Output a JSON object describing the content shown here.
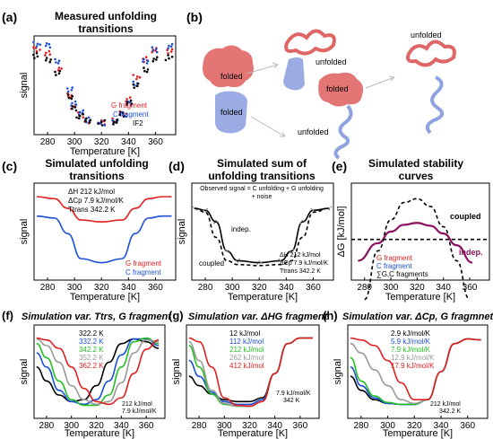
{
  "panels": {
    "a": {
      "letter": "(a)",
      "title_lines": [
        "Measured unfolding",
        "transitions"
      ],
      "xlabel": "Temperature [K]",
      "ylabel": "signal",
      "legend": [
        {
          "text": "G fragment",
          "color": "#e02020"
        },
        {
          "text": "C fragment",
          "color": "#1a4fd6"
        },
        {
          "text": "IF2",
          "color": "#000000"
        }
      ]
    },
    "b": {
      "letter": "(b)",
      "labels": {
        "folded_top": "folded",
        "folded_bottom": "folded",
        "unfolded_top": "unfolded",
        "folded_mid": "folded",
        "unfolded_bottom": "unfolded",
        "unfolded_right": "unfolded"
      }
    },
    "c": {
      "letter": "(c)",
      "title_lines": [
        "Simulated unfolding",
        "transitions"
      ],
      "xlabel": "Temperature [K]",
      "ylabel": "signal",
      "params": [
        "ΔH   212 kJ/mol",
        "ΔCp  7.9 kJ/mol/K",
        "Ttrans 342.2 K"
      ],
      "legend": [
        {
          "text": "G fragment",
          "color": "#e02020"
        },
        {
          "text": "C fragment",
          "color": "#1a4fd6"
        }
      ]
    },
    "d": {
      "letter": "(d)",
      "title_lines": [
        "Simulated sum of",
        "unfolding transitions"
      ],
      "xlabel": "Temperature [K]",
      "ylabel": "signal",
      "box_lines": [
        "Observed signal = C unfolding + G unfolding",
        "+ noise"
      ],
      "label_indep": "indep.",
      "label_coupled": "coupled",
      "params": [
        "ΔH    212 kJ/mol",
        "ΔCp  7.9 kJ/mol/K",
        "Ttrans 342.2 K"
      ]
    },
    "e": {
      "letter": "(e)",
      "title_lines": [
        "Simulated stability",
        "curves"
      ],
      "xlabel": "Temperature [K]",
      "ylabel": "ΔG [kJ/mol]",
      "label_coupled": "coupled",
      "label_indep": "indep.",
      "legend": [
        {
          "text": "G fragment",
          "color": "#e02020"
        },
        {
          "text": "C fragment",
          "color": "#1a4fd6"
        },
        {
          "text": "∑G,C fragments",
          "color": "#000000"
        }
      ]
    },
    "f": {
      "letter": "(f)",
      "title": "Simulation var. Ttrs, G fragment",
      "xlabel": "Temperature [K]",
      "ylabel": "signal",
      "legend": [
        {
          "text": "322.2 K",
          "color": "#000000"
        },
        {
          "text": "332.2 K",
          "color": "#1a4fd6"
        },
        {
          "text": "342.2 K",
          "color": "#22c022"
        },
        {
          "text": "352.2 K",
          "color": "#999999"
        },
        {
          "text": "362.2 K",
          "color": "#e02020"
        }
      ],
      "params": [
        "212 kJ/mol",
        "7.9 kJ/mol/K"
      ]
    },
    "g": {
      "letter": "(g)",
      "title": "Simulation var. ΔHG fragment",
      "xlabel": "Temperature [K]",
      "ylabel": "signal",
      "legend": [
        {
          "text": "12 kJ/mol",
          "color": "#000000"
        },
        {
          "text": "112 kJ/mol",
          "color": "#1a4fd6"
        },
        {
          "text": "212 kJ/mol",
          "color": "#22c022"
        },
        {
          "text": "262 kJ/mol",
          "color": "#999999"
        },
        {
          "text": "412 kJ/mol",
          "color": "#e02020"
        }
      ],
      "params": [
        "7.9 kJ/mol/K",
        "342 K"
      ]
    },
    "h": {
      "letter": "(h)",
      "title": "Simulation var. ΔCp, G fragmnet",
      "xlabel": "Temperature [K]",
      "ylabel": "signal",
      "legend": [
        {
          "text": "2.9 kJ/mol/K",
          "color": "#000000"
        },
        {
          "text": "5.9 kJ/mol/K",
          "color": "#1a4fd6"
        },
        {
          "text": "7.9 kJ/mol/K",
          "color": "#22c022"
        },
        {
          "text": "12.9 kJ/mol/K",
          "color": "#999999"
        },
        {
          "text": "17.9 kJ/mol/K",
          "color": "#e02020"
        }
      ],
      "params": [
        "212 kJ/mol",
        "342.2 K"
      ]
    }
  },
  "chart_data": [
    {
      "panel": "a",
      "type": "scatter",
      "x_ticks": [
        280,
        300,
        320,
        340,
        360
      ],
      "xlim": [
        270,
        375
      ],
      "series": [
        {
          "name": "G fragment",
          "color": "#e02020",
          "x": [
            272,
            280,
            288,
            296,
            300,
            304,
            310,
            320,
            330,
            336,
            340,
            346,
            352,
            360,
            370
          ],
          "y": [
            0.86,
            0.82,
            0.66,
            0.4,
            0.28,
            0.2,
            0.14,
            0.12,
            0.14,
            0.22,
            0.36,
            0.58,
            0.76,
            0.86,
            0.84
          ]
        },
        {
          "name": "C fragment",
          "color": "#1a4fd6",
          "x": [
            272,
            280,
            288,
            296,
            300,
            304,
            310,
            320,
            330,
            336,
            340,
            346,
            352,
            360,
            370
          ],
          "y": [
            0.92,
            0.9,
            0.74,
            0.46,
            0.32,
            0.22,
            0.15,
            0.12,
            0.13,
            0.2,
            0.32,
            0.52,
            0.74,
            0.86,
            0.9
          ]
        },
        {
          "name": "IF2",
          "color": "#000000",
          "x": [
            272,
            280,
            288,
            296,
            300,
            304,
            310,
            320,
            330,
            336,
            340,
            346,
            352,
            360,
            370
          ],
          "y": [
            0.8,
            0.76,
            0.62,
            0.38,
            0.27,
            0.19,
            0.14,
            0.12,
            0.13,
            0.2,
            0.32,
            0.5,
            0.66,
            0.76,
            0.78
          ]
        }
      ]
    },
    {
      "panel": "c",
      "type": "line",
      "x_ticks": [
        280,
        300,
        320,
        340,
        360
      ],
      "xlim": [
        270,
        375
      ],
      "series": [
        {
          "name": "G fragment",
          "color": "#e02020",
          "x": [
            272,
            285,
            295,
            305,
            320,
            335,
            345,
            355,
            365,
            372
          ],
          "y": [
            0.86,
            0.84,
            0.74,
            0.62,
            0.6,
            0.62,
            0.74,
            0.84,
            0.86,
            0.86
          ]
        },
        {
          "name": "C fragment",
          "color": "#1a4fd6",
          "x": [
            272,
            285,
            295,
            305,
            320,
            335,
            345,
            355,
            365,
            372
          ],
          "y": [
            0.66,
            0.64,
            0.48,
            0.22,
            0.18,
            0.22,
            0.48,
            0.64,
            0.66,
            0.66
          ]
        }
      ]
    },
    {
      "panel": "d",
      "type": "line",
      "x_ticks": [
        280,
        300,
        320,
        340,
        360
      ],
      "xlim": [
        270,
        375
      ],
      "series": [
        {
          "name": "indep.",
          "color": "#000000",
          "x": [
            272,
            280,
            288,
            296,
            304,
            320,
            336,
            344,
            352,
            360,
            372
          ],
          "y": [
            0.74,
            0.72,
            0.6,
            0.3,
            0.2,
            0.18,
            0.2,
            0.3,
            0.6,
            0.72,
            0.74
          ]
        },
        {
          "name": "coupled",
          "color": "#000000",
          "x": [
            272,
            280,
            288,
            296,
            304,
            320,
            336,
            344,
            352,
            360,
            372
          ],
          "y": [
            0.74,
            0.7,
            0.44,
            0.2,
            0.16,
            0.15,
            0.16,
            0.2,
            0.44,
            0.7,
            0.74
          ]
        }
      ]
    },
    {
      "panel": "e",
      "type": "line",
      "x_ticks": [
        280,
        300,
        320,
        340,
        360
      ],
      "xlim": [
        270,
        375
      ],
      "series": [
        {
          "name": "coupled",
          "color": "#000000",
          "x": [
            280,
            290,
            300,
            310,
            320,
            330,
            340,
            350,
            360
          ],
          "y": [
            -0.2,
            0.3,
            0.62,
            0.8,
            0.84,
            0.76,
            0.55,
            0.2,
            -0.2
          ]
        },
        {
          "name": "indep.",
          "color": "#8b1060",
          "x": [
            275,
            290,
            300,
            310,
            320,
            330,
            340,
            350,
            362
          ],
          "y": [
            0.2,
            0.38,
            0.5,
            0.57,
            0.59,
            0.56,
            0.48,
            0.36,
            0.18
          ]
        },
        {
          "name": "zero",
          "color": "#000000",
          "x": [
            270,
            375
          ],
          "y": [
            0.42,
            0.42
          ]
        }
      ]
    },
    {
      "panel": "f",
      "type": "line",
      "x_ticks": [
        280,
        300,
        320,
        340,
        360
      ],
      "xlim": [
        270,
        375
      ],
      "series": [
        {
          "name": "322.2 K",
          "color": "#000000",
          "x": [
            272,
            280,
            290,
            300,
            310,
            320,
            330,
            340,
            350,
            360,
            370
          ],
          "y": [
            0.55,
            0.4,
            0.25,
            0.18,
            0.2,
            0.35,
            0.6,
            0.8,
            0.85,
            0.82,
            0.75
          ]
        },
        {
          "name": "332.2 K",
          "color": "#1a4fd6",
          "x": [
            272,
            280,
            290,
            300,
            310,
            320,
            330,
            340,
            350,
            360,
            370
          ],
          "y": [
            0.7,
            0.55,
            0.3,
            0.18,
            0.15,
            0.2,
            0.4,
            0.68,
            0.85,
            0.85,
            0.78
          ]
        },
        {
          "name": "342.2 K",
          "color": "#22c022",
          "x": [
            272,
            280,
            290,
            300,
            310,
            320,
            330,
            340,
            350,
            360,
            370
          ],
          "y": [
            0.8,
            0.65,
            0.4,
            0.2,
            0.14,
            0.14,
            0.25,
            0.55,
            0.82,
            0.86,
            0.8
          ]
        },
        {
          "name": "352.2 K",
          "color": "#999999",
          "x": [
            272,
            280,
            290,
            300,
            310,
            320,
            330,
            340,
            350,
            360,
            370
          ],
          "y": [
            0.85,
            0.78,
            0.6,
            0.35,
            0.2,
            0.15,
            0.18,
            0.38,
            0.7,
            0.84,
            0.82
          ]
        },
        {
          "name": "362.2 K",
          "color": "#e02020",
          "x": [
            272,
            280,
            290,
            300,
            310,
            320,
            330,
            340,
            350,
            360,
            370
          ],
          "y": [
            0.86,
            0.84,
            0.75,
            0.55,
            0.32,
            0.18,
            0.15,
            0.22,
            0.48,
            0.74,
            0.84
          ]
        }
      ]
    },
    {
      "panel": "g",
      "type": "line",
      "x_ticks": [
        280,
        300,
        320,
        340,
        360
      ],
      "xlim": [
        270,
        375
      ],
      "series": [
        {
          "name": "12 kJ/mol",
          "color": "#000000",
          "x": [
            272,
            280,
            290,
            300,
            310,
            320,
            330,
            340,
            350,
            360,
            370
          ],
          "y": [
            0.45,
            0.35,
            0.26,
            0.2,
            0.18,
            0.18,
            0.22,
            0.48,
            0.8,
            0.86,
            0.86
          ]
        },
        {
          "name": "112 kJ/mol",
          "color": "#1a4fd6",
          "x": [
            272,
            280,
            290,
            300,
            310,
            320,
            330,
            340,
            350,
            360,
            370
          ],
          "y": [
            0.62,
            0.45,
            0.28,
            0.18,
            0.15,
            0.15,
            0.2,
            0.48,
            0.8,
            0.86,
            0.86
          ]
        },
        {
          "name": "212 kJ/mol",
          "color": "#22c022",
          "x": [
            272,
            280,
            290,
            300,
            310,
            320,
            330,
            340,
            350,
            360,
            370
          ],
          "y": [
            0.78,
            0.55,
            0.26,
            0.15,
            0.13,
            0.13,
            0.18,
            0.48,
            0.8,
            0.86,
            0.86
          ]
        },
        {
          "name": "262 kJ/mol",
          "color": "#999999",
          "x": [
            272,
            280,
            290,
            300,
            310,
            320,
            330,
            340,
            350,
            360,
            370
          ],
          "y": [
            0.82,
            0.62,
            0.3,
            0.16,
            0.13,
            0.13,
            0.18,
            0.48,
            0.8,
            0.86,
            0.86
          ]
        },
        {
          "name": "412 kJ/mol",
          "color": "#e02020",
          "x": [
            272,
            280,
            290,
            300,
            310,
            320,
            330,
            340,
            350,
            360,
            370
          ],
          "y": [
            0.86,
            0.82,
            0.55,
            0.22,
            0.14,
            0.13,
            0.18,
            0.48,
            0.8,
            0.86,
            0.86
          ]
        }
      ]
    },
    {
      "panel": "h",
      "type": "line",
      "x_ticks": [
        280,
        300,
        320,
        340,
        360
      ],
      "xlim": [
        270,
        375
      ],
      "series": [
        {
          "name": "2.9 kJ/mol/K",
          "color": "#000000",
          "x": [
            272,
            280,
            290,
            300,
            310,
            320,
            330,
            340,
            350,
            360,
            370
          ],
          "y": [
            0.45,
            0.3,
            0.2,
            0.16,
            0.15,
            0.15,
            0.2,
            0.5,
            0.8,
            0.85,
            0.84
          ]
        },
        {
          "name": "5.9 kJ/mol/K",
          "color": "#1a4fd6",
          "x": [
            272,
            280,
            290,
            300,
            310,
            320,
            330,
            340,
            350,
            360,
            370
          ],
          "y": [
            0.55,
            0.35,
            0.22,
            0.16,
            0.15,
            0.15,
            0.2,
            0.5,
            0.8,
            0.85,
            0.84
          ]
        },
        {
          "name": "7.9 kJ/mol/K",
          "color": "#22c022",
          "x": [
            272,
            280,
            290,
            300,
            310,
            320,
            330,
            340,
            350,
            360,
            370
          ],
          "y": [
            0.65,
            0.4,
            0.24,
            0.17,
            0.15,
            0.15,
            0.2,
            0.5,
            0.8,
            0.85,
            0.84
          ]
        },
        {
          "name": "12.9 kJ/mol/K",
          "color": "#999999",
          "x": [
            272,
            280,
            290,
            300,
            310,
            320,
            330,
            340,
            350,
            360,
            370
          ],
          "y": [
            0.8,
            0.7,
            0.52,
            0.35,
            0.2,
            0.16,
            0.2,
            0.5,
            0.8,
            0.85,
            0.84
          ]
        },
        {
          "name": "17.9 kJ/mol/K",
          "color": "#e02020",
          "x": [
            272,
            280,
            290,
            300,
            310,
            320,
            330,
            340,
            350,
            360,
            370
          ],
          "y": [
            0.86,
            0.84,
            0.78,
            0.62,
            0.38,
            0.2,
            0.2,
            0.5,
            0.8,
            0.85,
            0.84
          ]
        }
      ]
    }
  ]
}
